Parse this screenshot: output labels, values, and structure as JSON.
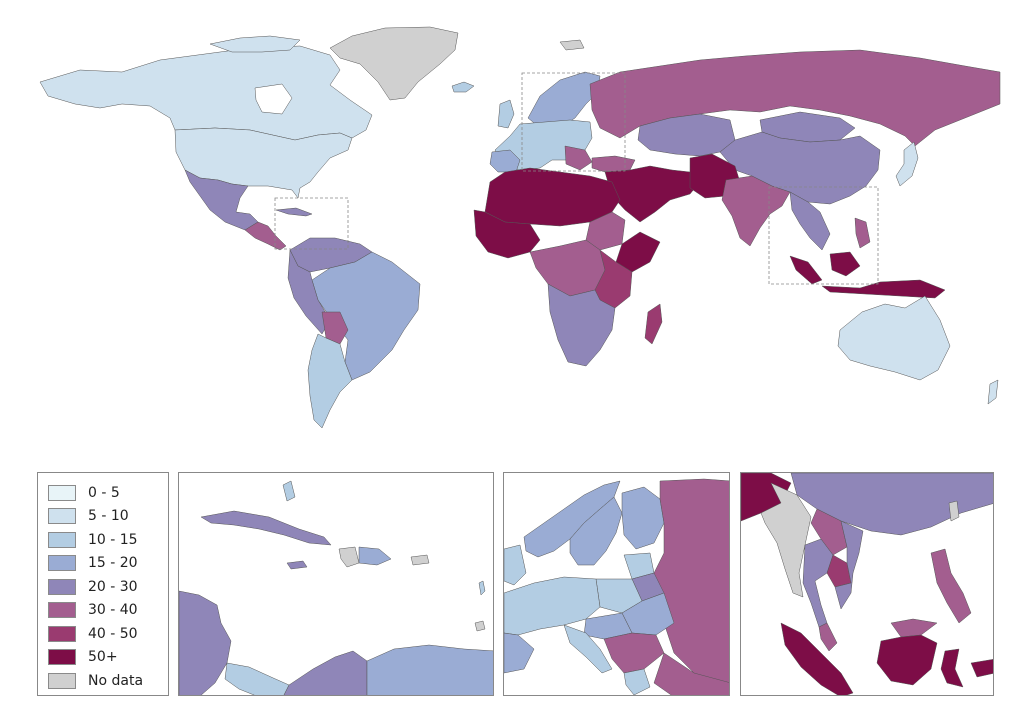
{
  "legend": {
    "title": "",
    "classes": [
      {
        "label": "0 - 5",
        "color": "#e8f4f8"
      },
      {
        "label": "5 - 10",
        "color": "#cfe1ee"
      },
      {
        "label": "10 - 15",
        "color": "#b3cde3"
      },
      {
        "label": "15 - 20",
        "color": "#9aacd4"
      },
      {
        "label": "20 - 30",
        "color": "#8f86b8"
      },
      {
        "label": "30 - 40",
        "color": "#a35e8f"
      },
      {
        "label": "40 - 50",
        "color": "#9a3b70"
      },
      {
        "label": "50+",
        "color": "#7d0d47"
      },
      {
        "label": "No data",
        "color": "#d0d0d0"
      }
    ]
  },
  "insets": [
    {
      "name": "caribbean-inset"
    },
    {
      "name": "europe-inset"
    },
    {
      "name": "southeast-asia-inset"
    }
  ]
}
